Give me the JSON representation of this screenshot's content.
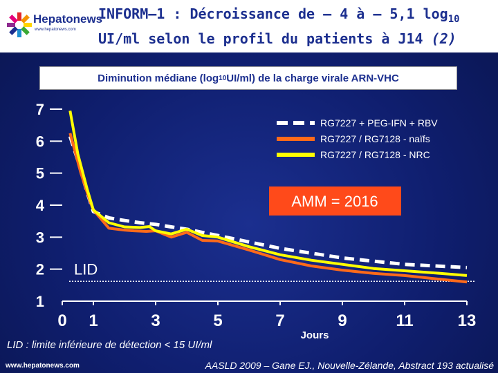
{
  "header": {
    "logo_name": "Hepatonews",
    "logo_url": "www.hepatonews.com",
    "title_line1": "INFORM–1 : Décroissance de – 4 à – 5,1 log",
    "title_log_sub": "10",
    "title_line2": "UI/ml selon le profil du patients à J14",
    "title_ref": "(2)"
  },
  "subtitle": {
    "text": "Diminution médiane (log",
    "sub": "10",
    "text_end": " UI/ml) de la charge virale ARN-VHC"
  },
  "chart_data": {
    "type": "line",
    "title": "Diminution médiane (log10 UI/ml) de la charge virale ARN-VHC",
    "xlabel": "Jours",
    "ylabel": "",
    "x_ticks": [
      0,
      1,
      3,
      5,
      7,
      9,
      11,
      13
    ],
    "y_ticks": [
      1,
      2,
      3,
      4,
      5,
      6,
      7
    ],
    "y_tick_labels": [
      "1",
      "2",
      "3",
      "4",
      "5",
      "6",
      "7"
    ],
    "x_tick_labels": [
      "0",
      "1",
      "3",
      "5",
      "7",
      "9",
      "11",
      "13"
    ],
    "xlim": [
      0,
      13
    ],
    "ylim": [
      1,
      7
    ],
    "lid": {
      "y": 1.62,
      "label": "LID"
    },
    "annotation": "AMM = 2016",
    "series": [
      {
        "name": "RG7227 + PEG-IFN + RBV",
        "color": "#ffffff",
        "style": "dashed",
        "x": [
          0.25,
          0.5,
          0.8,
          1,
          1.5,
          2,
          2.5,
          3,
          3.5,
          4,
          4.5,
          5,
          5.5,
          6,
          6.5,
          7,
          8,
          9,
          10,
          11,
          12,
          13
        ],
        "y": [
          6.15,
          5.4,
          4.4,
          3.8,
          3.6,
          3.52,
          3.45,
          3.4,
          3.32,
          3.25,
          3.15,
          3.05,
          2.95,
          2.85,
          2.75,
          2.65,
          2.5,
          2.35,
          2.25,
          2.15,
          2.1,
          2.05
        ]
      },
      {
        "name": "RG7227 / RG7128 - naïfs",
        "color": "#ff6a1a",
        "style": "solid",
        "x": [
          0.25,
          0.6,
          0.9,
          1,
          1.5,
          2,
          2.3,
          2.7,
          3,
          3.5,
          4,
          4.5,
          5,
          6,
          7,
          8,
          9,
          10,
          11,
          12,
          13
        ],
        "y": [
          6.25,
          5.0,
          4.1,
          3.85,
          3.28,
          3.22,
          3.2,
          3.18,
          3.2,
          3.0,
          3.15,
          2.9,
          2.88,
          2.6,
          2.3,
          2.1,
          1.97,
          1.87,
          1.8,
          1.7,
          1.6
        ]
      },
      {
        "name": "RG7227 / RG7128 - NRC",
        "color": "#ffff00",
        "style": "solid",
        "x": [
          0.25,
          0.5,
          0.8,
          1,
          1.5,
          2,
          2.5,
          2.8,
          3,
          3.5,
          4,
          4.5,
          5,
          6,
          7,
          8,
          9,
          10,
          11,
          12,
          13
        ],
        "y": [
          6.95,
          5.6,
          4.5,
          3.85,
          3.45,
          3.32,
          3.3,
          3.33,
          3.2,
          3.1,
          3.25,
          3.05,
          3.0,
          2.7,
          2.45,
          2.28,
          2.15,
          2.02,
          1.95,
          1.88,
          1.8
        ]
      }
    ]
  },
  "footnote": "LID : limite inférieure de détection < 15 UI/ml",
  "footer": {
    "url": "www.hepatonews.com",
    "source": "AASLD 2009 – Gane EJ., Nouvelle-Zélande, Abstract 193 actualisé"
  }
}
